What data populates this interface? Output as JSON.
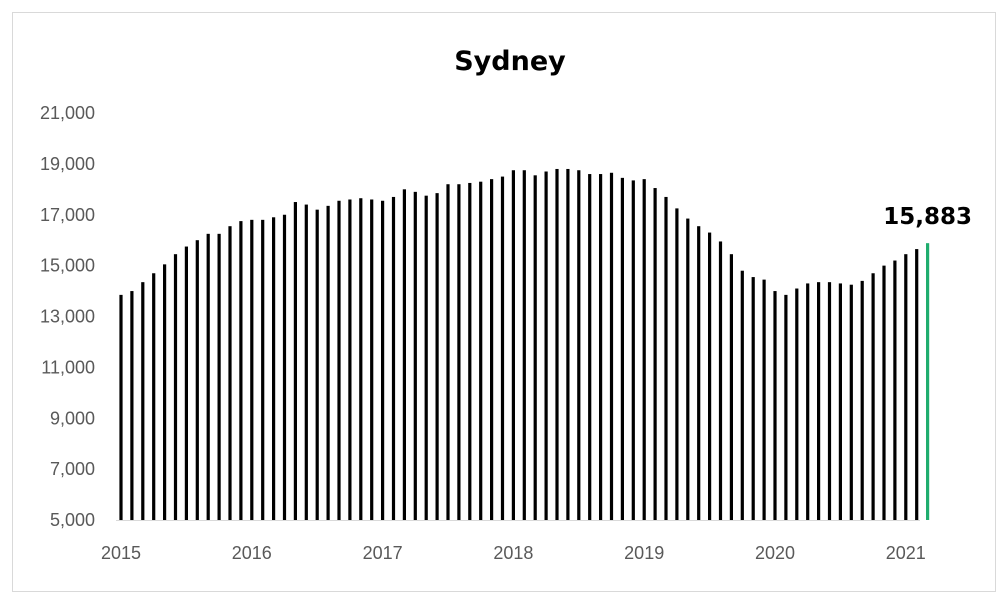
{
  "chart_data": {
    "type": "bar",
    "title": "Sydney",
    "xlabel": "",
    "ylabel": "",
    "ylim": [
      5000,
      21000
    ],
    "yticks": [
      "5,000",
      "7,000",
      "9,000",
      "11,000",
      "13,000",
      "15,000",
      "17,000",
      "19,000",
      "21,000"
    ],
    "ytick_values": [
      5000,
      7000,
      9000,
      11000,
      13000,
      15000,
      17000,
      19000,
      21000
    ],
    "xticks": [
      "2015",
      "2016",
      "2017",
      "2018",
      "2019",
      "2020",
      "2021"
    ],
    "xtick_positions": [
      0,
      12,
      24,
      36,
      48,
      60,
      72
    ],
    "grid": false,
    "legend": "none",
    "colors": {
      "bars": "#000000",
      "highlight": "#1fad6e"
    },
    "last_value_label": "15,883",
    "values": [
      13850,
      14000,
      14350,
      14700,
      15050,
      15450,
      15750,
      16000,
      16250,
      16250,
      16550,
      16750,
      16800,
      16800,
      16900,
      17000,
      17500,
      17400,
      17200,
      17350,
      17550,
      17600,
      17650,
      17600,
      17550,
      17700,
      18000,
      17900,
      17750,
      17850,
      18200,
      18200,
      18250,
      18300,
      18400,
      18500,
      18750,
      18750,
      18550,
      18700,
      18800,
      18800,
      18750,
      18600,
      18600,
      18650,
      18450,
      18350,
      18400,
      18050,
      17700,
      17250,
      16850,
      16550,
      16300,
      15950,
      15450,
      14800,
      14550,
      14450,
      14000,
      13850,
      14100,
      14300,
      14350,
      14350,
      14300,
      14250,
      14400,
      14700,
      15000,
      15200,
      15450,
      15650,
      15883
    ]
  }
}
